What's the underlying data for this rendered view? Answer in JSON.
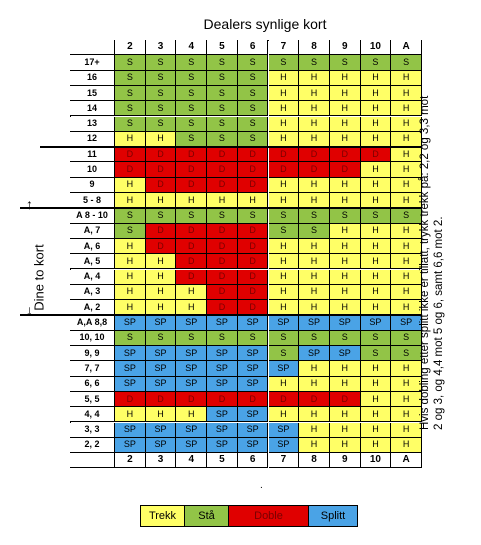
{
  "title": "Dealers synlige kort",
  "side_label": "Dine to kort",
  "note": "Hvis dobling etter splitt ikke er tillatt, trykk trekk på: 2,2 og 3,3 mot 2 og 3, og 4,4 mot 5 og 6, samt 6,6 mot 2.",
  "dealer_cards": [
    "2",
    "3",
    "4",
    "5",
    "6",
    "7",
    "8",
    "9",
    "10",
    "A"
  ],
  "rows": [
    {
      "label": "17+",
      "cells": [
        "S",
        "S",
        "S",
        "S",
        "S",
        "S",
        "S",
        "S",
        "S",
        "S"
      ]
    },
    {
      "label": "16",
      "cells": [
        "S",
        "S",
        "S",
        "S",
        "S",
        "H",
        "H",
        "H",
        "H",
        "H"
      ]
    },
    {
      "label": "15",
      "cells": [
        "S",
        "S",
        "S",
        "S",
        "S",
        "H",
        "H",
        "H",
        "H",
        "H"
      ]
    },
    {
      "label": "14",
      "cells": [
        "S",
        "S",
        "S",
        "S",
        "S",
        "H",
        "H",
        "H",
        "H",
        "H"
      ]
    },
    {
      "label": "13",
      "cells": [
        "S",
        "S",
        "S",
        "S",
        "S",
        "H",
        "H",
        "H",
        "H",
        "H"
      ]
    },
    {
      "label": "12",
      "cells": [
        "H",
        "H",
        "S",
        "S",
        "S",
        "H",
        "H",
        "H",
        "H",
        "H"
      ]
    },
    {
      "label": "11",
      "cells": [
        "D",
        "D",
        "D",
        "D",
        "D",
        "D",
        "D",
        "D",
        "D",
        "H"
      ]
    },
    {
      "label": "10",
      "cells": [
        "D",
        "D",
        "D",
        "D",
        "D",
        "D",
        "D",
        "D",
        "H",
        "H"
      ]
    },
    {
      "label": "9",
      "cells": [
        "H",
        "D",
        "D",
        "D",
        "D",
        "H",
        "H",
        "H",
        "H",
        "H"
      ]
    },
    {
      "label": "5 - 8",
      "cells": [
        "H",
        "H",
        "H",
        "H",
        "H",
        "H",
        "H",
        "H",
        "H",
        "H"
      ]
    },
    {
      "label": "A 8 - 10",
      "cells": [
        "S",
        "S",
        "S",
        "S",
        "S",
        "S",
        "S",
        "S",
        "S",
        "S"
      ]
    },
    {
      "label": "A, 7",
      "cells": [
        "S",
        "D",
        "D",
        "D",
        "D",
        "S",
        "S",
        "H",
        "H",
        "H"
      ]
    },
    {
      "label": "A, 6",
      "cells": [
        "H",
        "D",
        "D",
        "D",
        "D",
        "H",
        "H",
        "H",
        "H",
        "H"
      ]
    },
    {
      "label": "A, 5",
      "cells": [
        "H",
        "H",
        "D",
        "D",
        "D",
        "H",
        "H",
        "H",
        "H",
        "H"
      ]
    },
    {
      "label": "A, 4",
      "cells": [
        "H",
        "H",
        "D",
        "D",
        "D",
        "H",
        "H",
        "H",
        "H",
        "H"
      ]
    },
    {
      "label": "A, 3",
      "cells": [
        "H",
        "H",
        "H",
        "D",
        "D",
        "H",
        "H",
        "H",
        "H",
        "H"
      ]
    },
    {
      "label": "A, 2",
      "cells": [
        "H",
        "H",
        "H",
        "D",
        "D",
        "H",
        "H",
        "H",
        "H",
        "H"
      ]
    },
    {
      "label": "A,A 8,8",
      "cells": [
        "SP",
        "SP",
        "SP",
        "SP",
        "SP",
        "SP",
        "SP",
        "SP",
        "SP",
        "SP"
      ]
    },
    {
      "label": "10, 10",
      "cells": [
        "S",
        "S",
        "S",
        "S",
        "S",
        "S",
        "S",
        "S",
        "S",
        "S"
      ]
    },
    {
      "label": "9, 9",
      "cells": [
        "SP",
        "SP",
        "SP",
        "SP",
        "SP",
        "S",
        "SP",
        "SP",
        "S",
        "S"
      ]
    },
    {
      "label": "7, 7",
      "cells": [
        "SP",
        "SP",
        "SP",
        "SP",
        "SP",
        "SP",
        "H",
        "H",
        "H",
        "H"
      ]
    },
    {
      "label": "6, 6",
      "cells": [
        "SP",
        "SP",
        "SP",
        "SP",
        "SP",
        "H",
        "H",
        "H",
        "H",
        "H"
      ]
    },
    {
      "label": "5, 5",
      "cells": [
        "D",
        "D",
        "D",
        "D",
        "D",
        "D",
        "D",
        "D",
        "H",
        "H"
      ]
    },
    {
      "label": "4, 4",
      "cells": [
        "H",
        "H",
        "H",
        "SP",
        "SP",
        "H",
        "H",
        "H",
        "H",
        "H"
      ]
    },
    {
      "label": "3, 3",
      "cells": [
        "SP",
        "SP",
        "SP",
        "SP",
        "SP",
        "SP",
        "H",
        "H",
        "H",
        "H"
      ]
    },
    {
      "label": "2, 2",
      "cells": [
        "SP",
        "SP",
        "SP",
        "SP",
        "SP",
        "SP",
        "H",
        "H",
        "H",
        "H"
      ]
    }
  ],
  "cell_text": {
    "H": "H",
    "S": "S",
    "D": "D",
    "SP": "SP"
  },
  "legend": [
    {
      "key": "H",
      "label": "Trekk",
      "color": "#ffff66"
    },
    {
      "key": "S",
      "label": "Stå",
      "color": "#92c447"
    },
    {
      "key": "D",
      "label": "Doble",
      "color": "#e00000"
    },
    {
      "key": "SP",
      "label": "Splitt",
      "color": "#4aa3e6"
    }
  ],
  "colors": {
    "H": "#ffff66",
    "S": "#92c447",
    "D": "#e00000",
    "SP": "#4aa3e6"
  }
}
